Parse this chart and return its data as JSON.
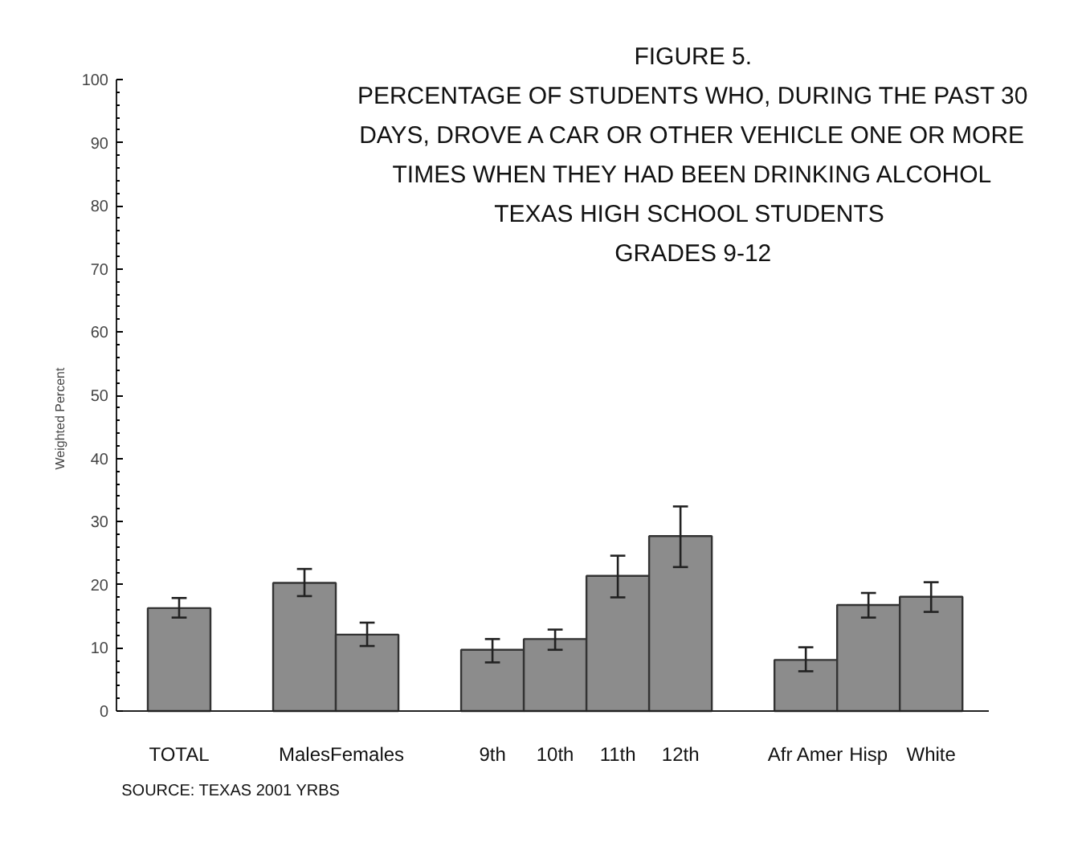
{
  "chart_data": {
    "type": "bar",
    "title": "FIGURE 5.\nPERCENTAGE OF STUDENTS WHO, DURING THE PAST 30\nDAYS, DROVE A CAR OR OTHER VEHICLE ONE OR MORE\nTIMES WHEN THEY HAD BEEN DRINKING ALCOHOL\nTEXAS HIGH  SCHOOL STUDENTS\nGRADES 9-12",
    "ylabel": "Weighted Percent",
    "categories": [
      "TOTAL",
      null,
      "Males",
      "Females",
      null,
      "9th",
      "10th",
      "11th",
      "12th",
      null,
      "Afr Amer",
      "Hisp",
      "White"
    ],
    "values": [
      16.3,
      null,
      20.3,
      12.1,
      null,
      9.7,
      11.4,
      21.4,
      27.7,
      null,
      8.1,
      16.8,
      18.1
    ],
    "errors": [
      [
        14.8,
        17.9
      ],
      null,
      [
        18.2,
        22.5
      ],
      [
        10.3,
        14.0
      ],
      null,
      [
        7.7,
        11.4
      ],
      [
        9.7,
        12.9
      ],
      [
        18.0,
        24.6
      ],
      [
        22.8,
        32.4
      ],
      null,
      [
        6.3,
        10.1
      ],
      [
        14.8,
        18.7
      ],
      [
        15.7,
        20.4
      ]
    ],
    "color": "#8c8c8c",
    "ylim": [
      0,
      100
    ],
    "yticks": [
      0,
      10,
      20,
      30,
      40,
      50,
      60,
      70,
      80,
      90,
      100
    ],
    "grid": false,
    "annotations": [
      "SOURCE: TEXAS 2001 YRBS"
    ]
  }
}
